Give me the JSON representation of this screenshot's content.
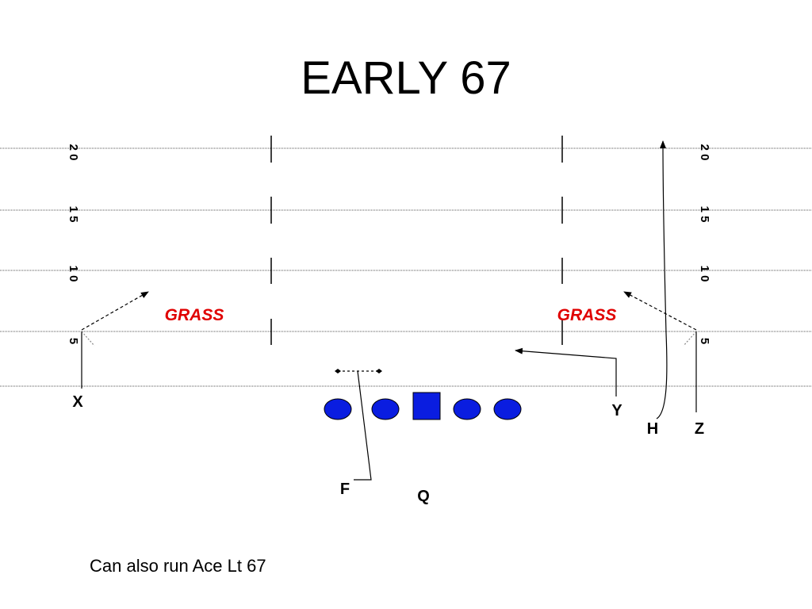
{
  "title": "EARLY 67",
  "left_yard_labels": [
    "2 0",
    "1 5",
    "1 0",
    "5"
  ],
  "right_yard_labels": [
    "2 0",
    "1 5",
    "1 0",
    "5"
  ],
  "zone_labels": [
    "GRASS",
    "GRASS"
  ],
  "players": [
    "X",
    "Y",
    "H",
    "Z",
    "F",
    "Q"
  ],
  "note": "Can also run Ace Lt 67"
}
